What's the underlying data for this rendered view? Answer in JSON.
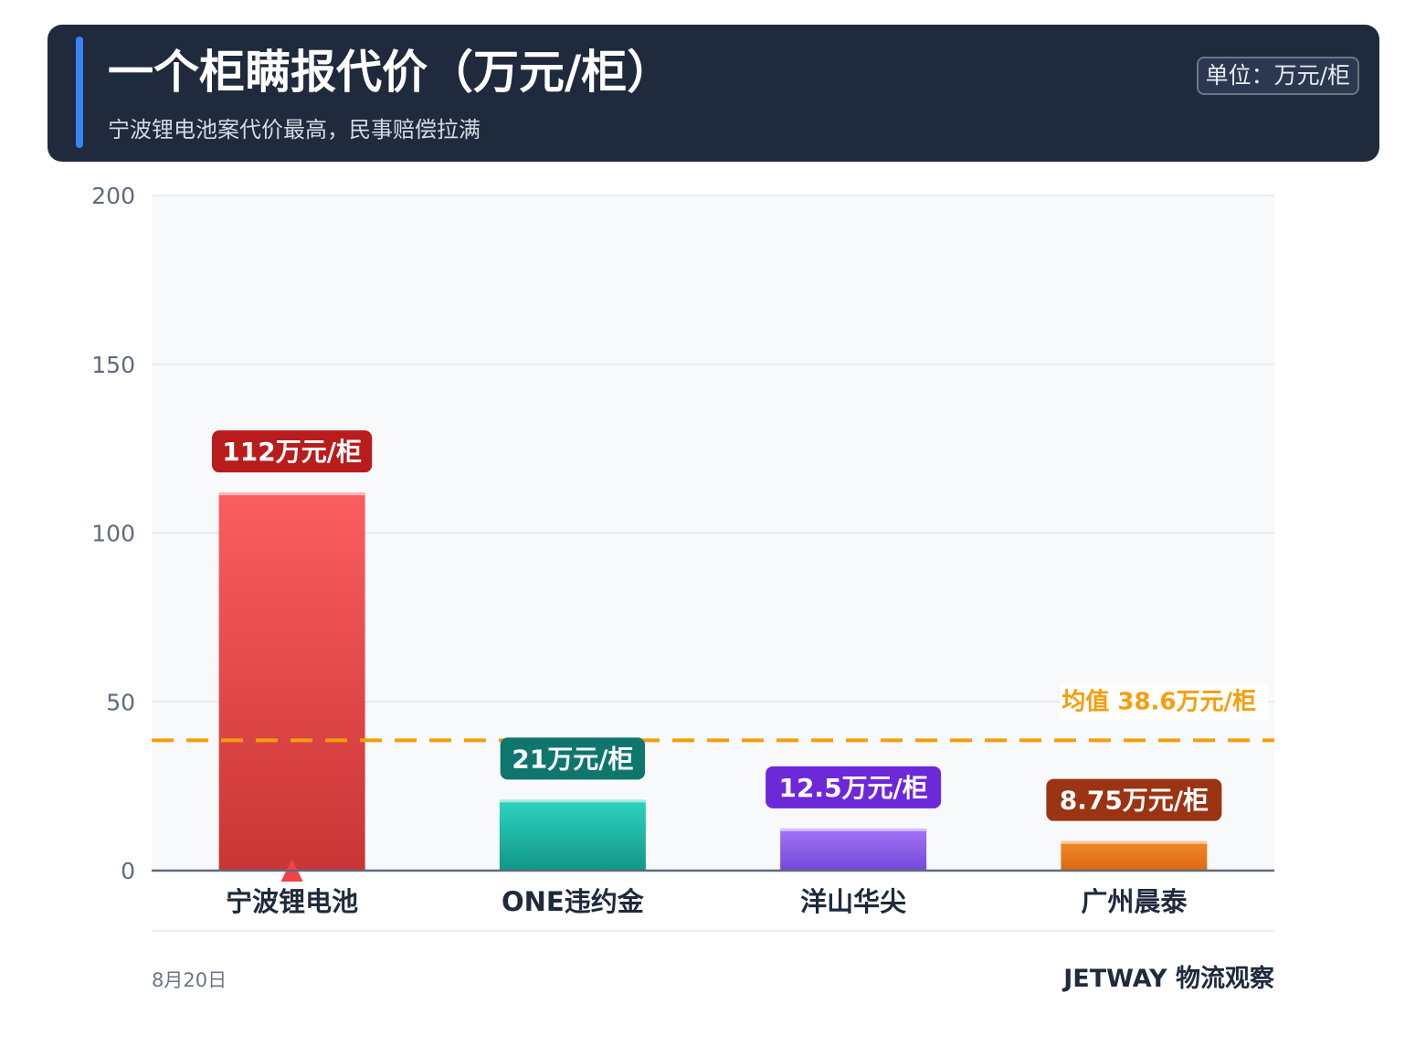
{
  "header": {
    "title": "一个柜瞒报代价（万元/柜）",
    "subtitle": "宁波锂电池案代价最高，民事赔偿拉满",
    "unit_badge": "单位：万元/柜"
  },
  "footer": {
    "date": "8月20日",
    "brand": "JETWAY 物流观察"
  },
  "chart_data": {
    "type": "bar",
    "title": "一个柜瞒报代价（万元/柜）",
    "ylim": [
      0,
      200
    ],
    "yticks": [
      0,
      50,
      100,
      150,
      200
    ],
    "grid": true,
    "categories": [
      "宁波锂电池",
      "ONE违约金",
      "洋山华尖",
      "广州晨泰"
    ],
    "values": [
      112,
      21,
      12.5,
      8.75
    ],
    "data_labels": [
      "112万元/柜",
      "21万元/柜",
      "12.5万元/柜",
      "8.75万元/柜"
    ],
    "bar_colors_top": [
      "#fb5e5e",
      "#2dd4bf",
      "#a474f5",
      "#f08a2a"
    ],
    "bar_colors_bottom": [
      "#c93535",
      "#119688",
      "#7449da",
      "#dc6a13"
    ],
    "label_colors": [
      "#b91c1c",
      "#0f766e",
      "#6d28d9",
      "#9a3412"
    ],
    "average": {
      "value": 38.6,
      "label": "均值 38.6万元/柜",
      "color": "#f59e0b"
    },
    "highlight_marker_color": "#ef4444"
  }
}
